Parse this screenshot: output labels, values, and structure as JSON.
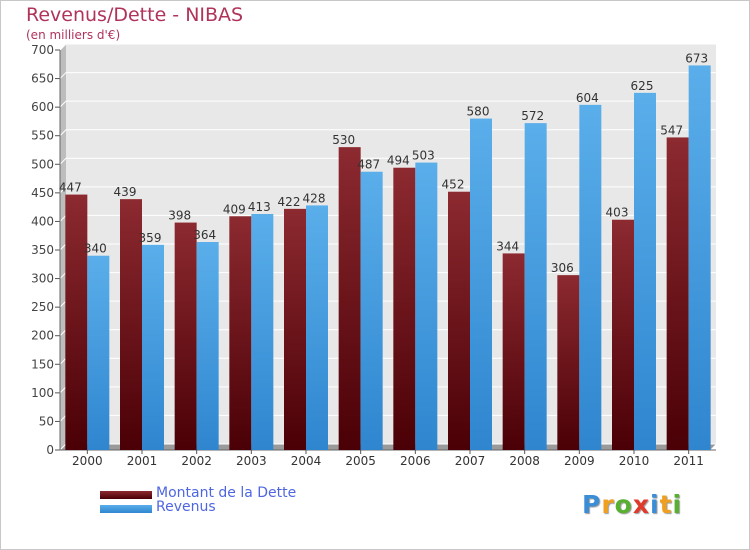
{
  "header": {
    "title": "Revenus/Dette - NIBAS",
    "subtitle": "(en milliers d'€)"
  },
  "colors": {
    "dette": "#7a1a22",
    "revenus": "#4fa3e2",
    "plot_background": "#e8e8e8",
    "grid": "#ffffff",
    "title": "#b0335a",
    "legend_text": "#4f66e0"
  },
  "chart_data": {
    "type": "bar",
    "categories": [
      "2000",
      "2001",
      "2002",
      "2003",
      "2004",
      "2005",
      "2006",
      "2007",
      "2008",
      "2009",
      "2010",
      "2011"
    ],
    "series": [
      {
        "name": "Montant de la Dette",
        "values": [
          447,
          439,
          398,
          409,
          422,
          530,
          494,
          452,
          344,
          306,
          403,
          547
        ]
      },
      {
        "name": "Revenus",
        "values": [
          340,
          359,
          364,
          413,
          428,
          487,
          503,
          580,
          572,
          604,
          625,
          673
        ]
      }
    ],
    "ylim": [
      0,
      700
    ],
    "yticks": [
      0,
      50,
      100,
      150,
      200,
      250,
      300,
      350,
      400,
      450,
      500,
      550,
      600,
      650,
      700
    ],
    "grid": true,
    "data_labels": true,
    "legend_position": "bottom-left"
  },
  "legend": [
    {
      "label": "Montant de la Dette"
    },
    {
      "label": "Revenus"
    }
  ],
  "logo": {
    "letters": [
      "P",
      "r",
      "o",
      "x",
      "i",
      "t",
      "i"
    ],
    "colors": [
      "#3b8ed6",
      "#f0a020",
      "#58b030",
      "#e03a2a",
      "#3b8ed6",
      "#f0a020",
      "#58b030"
    ]
  }
}
